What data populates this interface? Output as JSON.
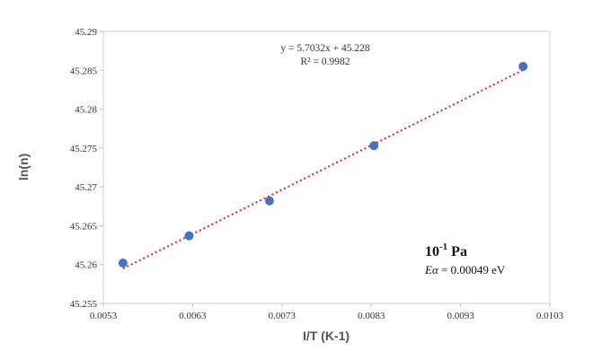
{
  "chart_data": {
    "type": "scatter",
    "xlabel": "I/T (K-1)",
    "ylabel": "ln(n)",
    "xlim": [
      0.0053,
      0.0103
    ],
    "ylim": [
      45.255,
      45.29
    ],
    "x_ticks": [
      "0.0053",
      "0.0063",
      "0.0073",
      "0.0083",
      "0.0093",
      "0.0103"
    ],
    "y_ticks": [
      "45.255",
      "45.26",
      "45.265",
      "45.27",
      "45.275",
      "45.28",
      "45.285",
      "45.29"
    ],
    "points": [
      {
        "x": 0.00552,
        "y": 45.2602
      },
      {
        "x": 0.00626,
        "y": 45.2637
      },
      {
        "x": 0.00716,
        "y": 45.2682
      },
      {
        "x": 0.00833,
        "y": 45.2753
      },
      {
        "x": 0.01,
        "y": 45.2855
      }
    ],
    "trendline": {
      "slope": 5.7032,
      "intercept": 45.228,
      "x_range": [
        0.00552,
        0.01
      ],
      "style": "dotted",
      "color": "#e02020"
    },
    "equation_line1": "y = 5.7032x + 45.228",
    "equation_line2": "R² = 0.9982",
    "annotation_pressure_base": "10",
    "annotation_pressure_exp": "-1",
    "annotation_pressure_unit": " Pa",
    "annotation_energy_symbol": "Eα",
    "annotation_energy_value": " = 0.00049 eV",
    "marker_color": "#4472c4",
    "grid": false,
    "legend": "none"
  }
}
